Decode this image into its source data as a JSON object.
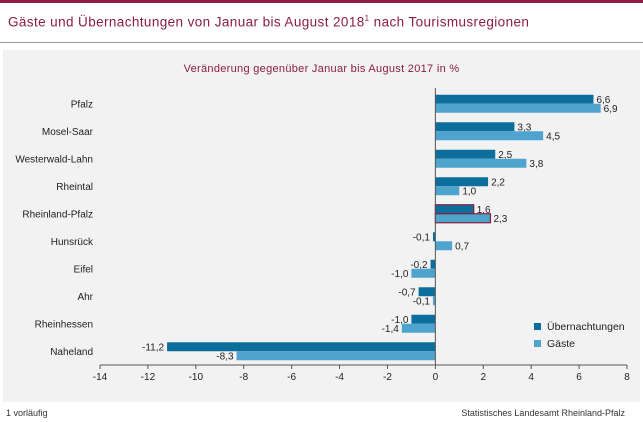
{
  "header": {
    "title": "Gäste und Übernachtungen von Januar bis August 2018",
    "title_footnote_mark": "1",
    "title_suffix": " nach Tourismusregionen"
  },
  "colors": {
    "accent": "#8c1d40",
    "uebernachtungen": "#0b6e9c",
    "gaeste": "#4ea4cc",
    "highlight_border": "#8c1d40"
  },
  "chart_data": {
    "type": "bar",
    "orientation": "horizontal",
    "title": "Veränderung gegenüber Januar bis August 2017 in %",
    "categories": [
      "Pfalz",
      "Mosel-Saar",
      "Westerwald-Lahn",
      "Rheintal",
      "Rheinland-Pfalz",
      "Hunsrück",
      "Eifel",
      "Ahr",
      "Rheinhessen",
      "Naheland"
    ],
    "highlighted_category": "Rheinland-Pfalz",
    "series": [
      {
        "name": "Übernachtungen",
        "values": [
          6.6,
          3.3,
          2.5,
          2.2,
          1.6,
          -0.1,
          -0.2,
          -0.7,
          -1.0,
          -11.2
        ],
        "labels": [
          "6,6",
          "3,3",
          "2,5",
          "2,2",
          "1,6",
          "-0,1",
          "-0,2",
          "-0,7",
          "-1,0",
          "-11,2"
        ]
      },
      {
        "name": "Gäste",
        "values": [
          6.9,
          4.5,
          3.8,
          1.0,
          2.3,
          0.7,
          -1.0,
          -0.1,
          -1.4,
          -8.3
        ],
        "labels": [
          "6,9",
          "4,5",
          "3,8",
          "1,0",
          "2,3",
          "0,7",
          "-1,0",
          "-0,1",
          "-1,4",
          "-8,3"
        ]
      }
    ],
    "xlim": [
      -14,
      8
    ],
    "xticks": [
      -14,
      -12,
      -10,
      -8,
      -6,
      -4,
      -2,
      0,
      2,
      4,
      6,
      8
    ],
    "xticklabels": [
      "-14",
      "-12",
      "-10",
      "-8",
      "-6",
      "-4",
      "-2",
      "0",
      "2",
      "4",
      "6",
      "8"
    ],
    "legend_position": "bottom-right",
    "grid": false
  },
  "footer": {
    "footnote": "1 vorläufig",
    "source": "Statistisches Landesamt Rheinland-Pfalz"
  }
}
